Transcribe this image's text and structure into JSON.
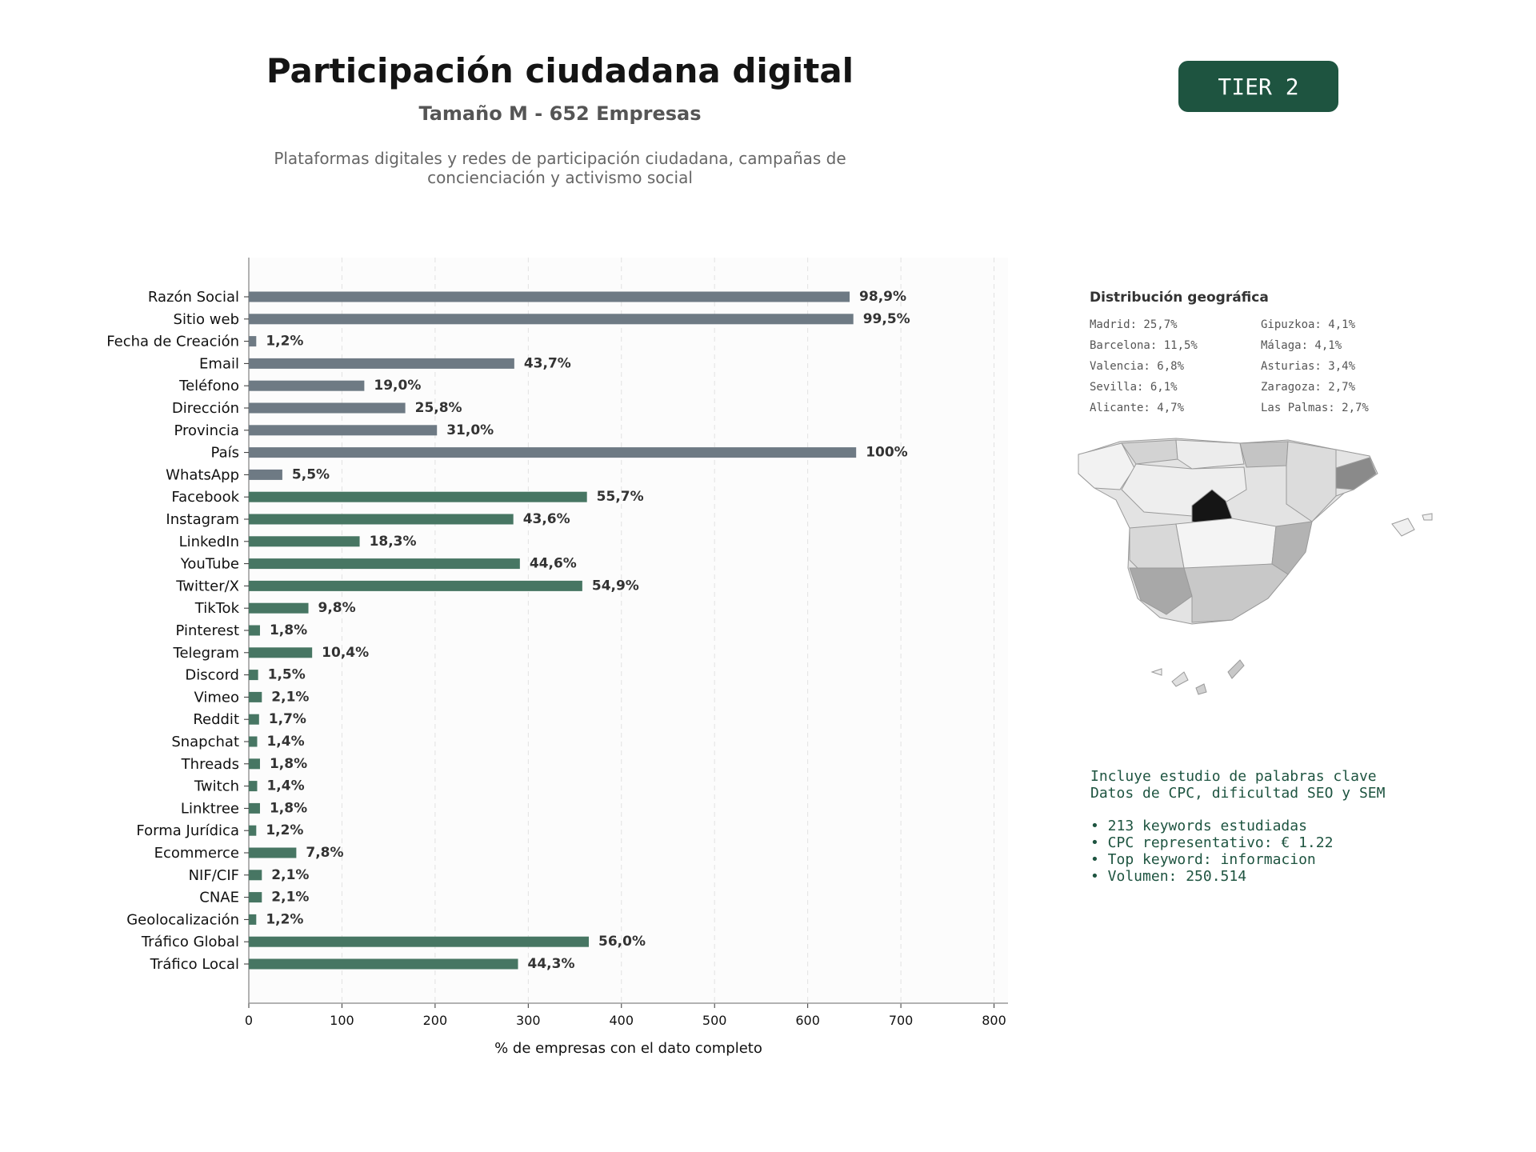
{
  "header": {
    "title": "Participación ciudadana digital",
    "subtitle": "Tamaño M - 652 Empresas",
    "description_line1": "Plataformas digitales y redes de participación ciudadana, campañas de",
    "description_line2": "concienciación y activismo social",
    "tier": "TIER 2"
  },
  "colors": {
    "gray_bar": "#6e7a84",
    "green_bar": "#477663",
    "accent": "#1e5440"
  },
  "chart_data": {
    "type": "bar",
    "orientation": "horizontal",
    "xlabel": "% de empresas con el dato completo",
    "xlim": [
      0,
      815
    ],
    "xticks": [
      0,
      100,
      200,
      300,
      400,
      500,
      600,
      700,
      800
    ],
    "grid": "vertical dashed",
    "categories": [
      "Razón Social",
      "Sitio web",
      "Fecha de Creación",
      "Email",
      "Teléfono",
      "Dirección",
      "Provincia",
      "País",
      "WhatsApp",
      "Facebook",
      "Instagram",
      "LinkedIn",
      "YouTube",
      "Twitter/X",
      "TikTok",
      "Pinterest",
      "Telegram",
      "Discord",
      "Vimeo",
      "Reddit",
      "Snapchat",
      "Threads",
      "Twitch",
      "Linktree",
      "Forma Jurídica",
      "Ecommerce",
      "NIF/CIF",
      "CNAE",
      "Geolocalización",
      "Tráfico Global",
      "Tráfico Local"
    ],
    "values": [
      645,
      649,
      8,
      285,
      124,
      168,
      202,
      652,
      36,
      363,
      284,
      119,
      291,
      358,
      64,
      12,
      68,
      10,
      14,
      11,
      9,
      12,
      9,
      12,
      8,
      51,
      14,
      14,
      8,
      365,
      289
    ],
    "labels": [
      "98,9%",
      "99,5%",
      "1,2%",
      "43,7%",
      "19,0%",
      "25,8%",
      "31,0%",
      "100%",
      "5,5%",
      "55,7%",
      "43,6%",
      "18,3%",
      "44,6%",
      "54,9%",
      "9,8%",
      "1,8%",
      "10,4%",
      "1,5%",
      "2,1%",
      "1,7%",
      "1,4%",
      "1,8%",
      "1,4%",
      "1,8%",
      "1,2%",
      "7,8%",
      "2,1%",
      "2,1%",
      "1,2%",
      "56,0%",
      "44,3%"
    ],
    "bar_color": [
      "gray",
      "gray",
      "gray",
      "gray",
      "gray",
      "gray",
      "gray",
      "gray",
      "gray",
      "green",
      "green",
      "green",
      "green",
      "green",
      "green",
      "green",
      "green",
      "green",
      "green",
      "green",
      "green",
      "green",
      "green",
      "green",
      "green",
      "green",
      "green",
      "green",
      "green",
      "green",
      "green"
    ]
  },
  "geo": {
    "title": "Distribución geográfica",
    "col1": [
      "Madrid: 25,7%",
      "Barcelona: 11,5%",
      "Valencia: 6,8%",
      "Sevilla: 6,1%",
      "Alicante: 4,7%"
    ],
    "col2": [
      "Gipuzkoa: 4,1%",
      "Málaga: 4,1%",
      "Asturias: 3,4%",
      "Zaragoza: 2,7%",
      "Las Palmas: 2,7%"
    ]
  },
  "keywords": {
    "line1": "Incluye estudio de palabras clave",
    "line2": "Datos de CPC, dificultad SEO y SEM",
    "bullets": [
      "• 213 keywords estudiadas",
      "• CPC representativo: € 1.22",
      "• Top keyword: informacion",
      "• Volumen: 250.514"
    ]
  }
}
